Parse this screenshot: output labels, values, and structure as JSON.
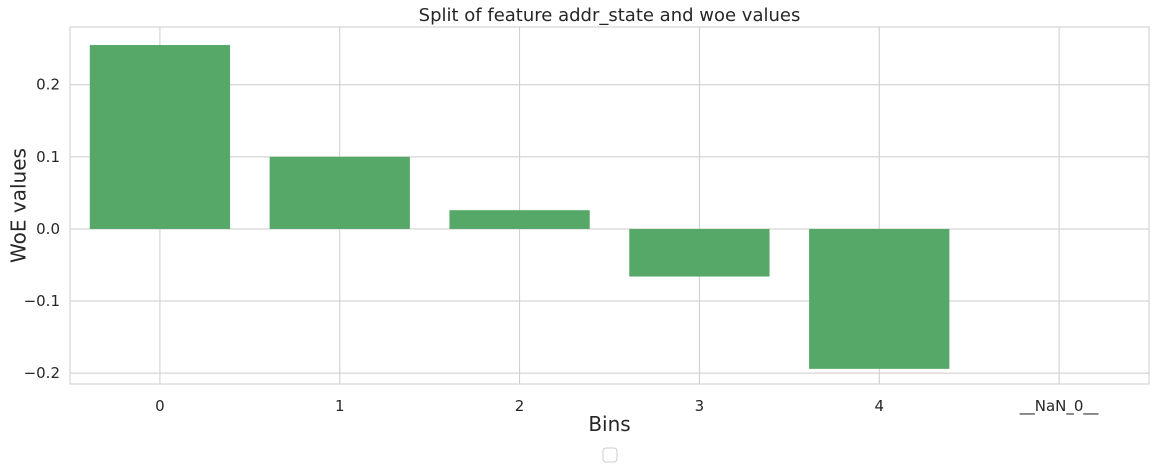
{
  "chart_data": {
    "type": "bar",
    "title": "Split of feature addr_state and woe values",
    "xlabel": "Bins",
    "ylabel": "WoE values",
    "categories": [
      "0",
      "1",
      "2",
      "3",
      "4",
      "__NaN_0__"
    ],
    "values": [
      0.255,
      0.1,
      0.026,
      -0.066,
      -0.194,
      0.0
    ],
    "ylim": [
      -0.215,
      0.28
    ],
    "yticks": [
      -0.2,
      -0.1,
      0.0,
      0.1,
      0.2
    ],
    "ytick_labels": [
      "−0.2",
      "−0.1",
      "0.0",
      "0.1",
      "0.2"
    ],
    "grid": true,
    "legend": "lower-center, empty",
    "colors": {
      "bar": "#55a868",
      "grid": "#cccccc",
      "text": "#262626",
      "background": "#ffffff"
    }
  }
}
